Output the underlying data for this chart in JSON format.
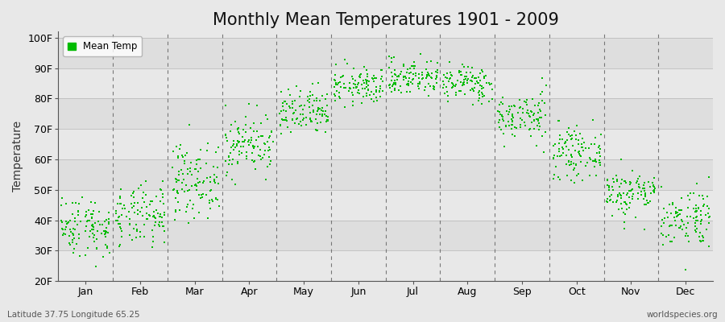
{
  "title": "Monthly Mean Temperatures 1901 - 2009",
  "ylabel": "Temperature",
  "xlabel_labels": [
    "Jan",
    "Feb",
    "Mar",
    "Apr",
    "May",
    "Jun",
    "Jul",
    "Aug",
    "Sep",
    "Oct",
    "Nov",
    "Dec"
  ],
  "ylim": [
    20,
    102
  ],
  "ytick_labels": [
    "20F",
    "30F",
    "40F",
    "50F",
    "60F",
    "70F",
    "80F",
    "90F",
    "100F"
  ],
  "ytick_values": [
    20,
    30,
    40,
    50,
    60,
    70,
    80,
    90,
    100
  ],
  "dot_color": "#00BB00",
  "dot_size": 3,
  "background_color": "#E8E8E8",
  "band_colors": [
    "#E8E8E8",
    "#DEDEDE"
  ],
  "grid_color": "#777777",
  "legend_label": "Mean Temp",
  "footer_left": "Latitude 37.75 Longitude 65.25",
  "footer_right": "worldspecies.org",
  "title_fontsize": 15,
  "axis_fontsize": 9,
  "monthly_means": [
    38,
    41,
    53,
    65,
    75,
    84,
    87,
    85,
    74,
    62,
    49,
    41
  ],
  "monthly_stds": [
    5,
    5,
    6,
    5,
    4,
    3,
    3,
    3,
    4,
    4,
    4,
    5
  ],
  "n_years": 109
}
